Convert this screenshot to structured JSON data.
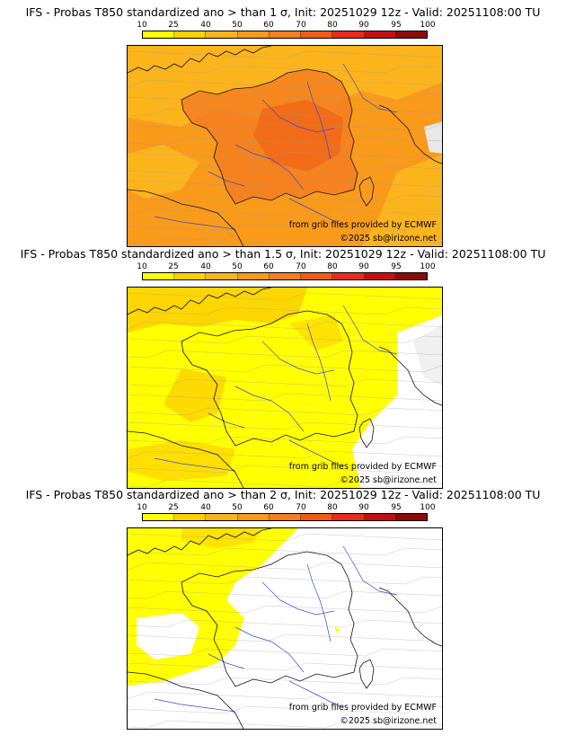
{
  "legend_ticks": [
    "10",
    "25",
    "40",
    "50",
    "60",
    "70",
    "80",
    "90",
    "95",
    "100"
  ],
  "legend_colors": [
    "#ffff00",
    "#fdd100",
    "#fcb41c",
    "#f99a1b",
    "#f57e1e",
    "#f05c14",
    "#ea2a1c",
    "#c30f13",
    "#8e0a0a",
    "#520000"
  ],
  "panels": [
    {
      "title": "IFS - Probas T850  standardized ano > than 1 σ, Init: 20251029 12z - Valid: 20251108:00 TU",
      "provider_credit": "from grib files provided by ECMWF",
      "copyright": "©2025 sb@irizone.net",
      "fill_level": "high"
    },
    {
      "title": "IFS - Probas T850  standardized ano > than 1.5 σ, Init: 20251029 12z - Valid: 20251108:00 TU",
      "provider_credit": "from grib files provided by ECMWF",
      "copyright": "©2025 sb@irizone.net",
      "fill_level": "medium"
    },
    {
      "title": "IFS - Probas T850  standardized ano > than 2 σ, Init: 20251029 12z - Valid: 20251108:00 TU",
      "provider_credit": "from grib files provided by ECMWF",
      "copyright": "©2025 sb@irizone.net",
      "fill_level": "low"
    }
  ]
}
